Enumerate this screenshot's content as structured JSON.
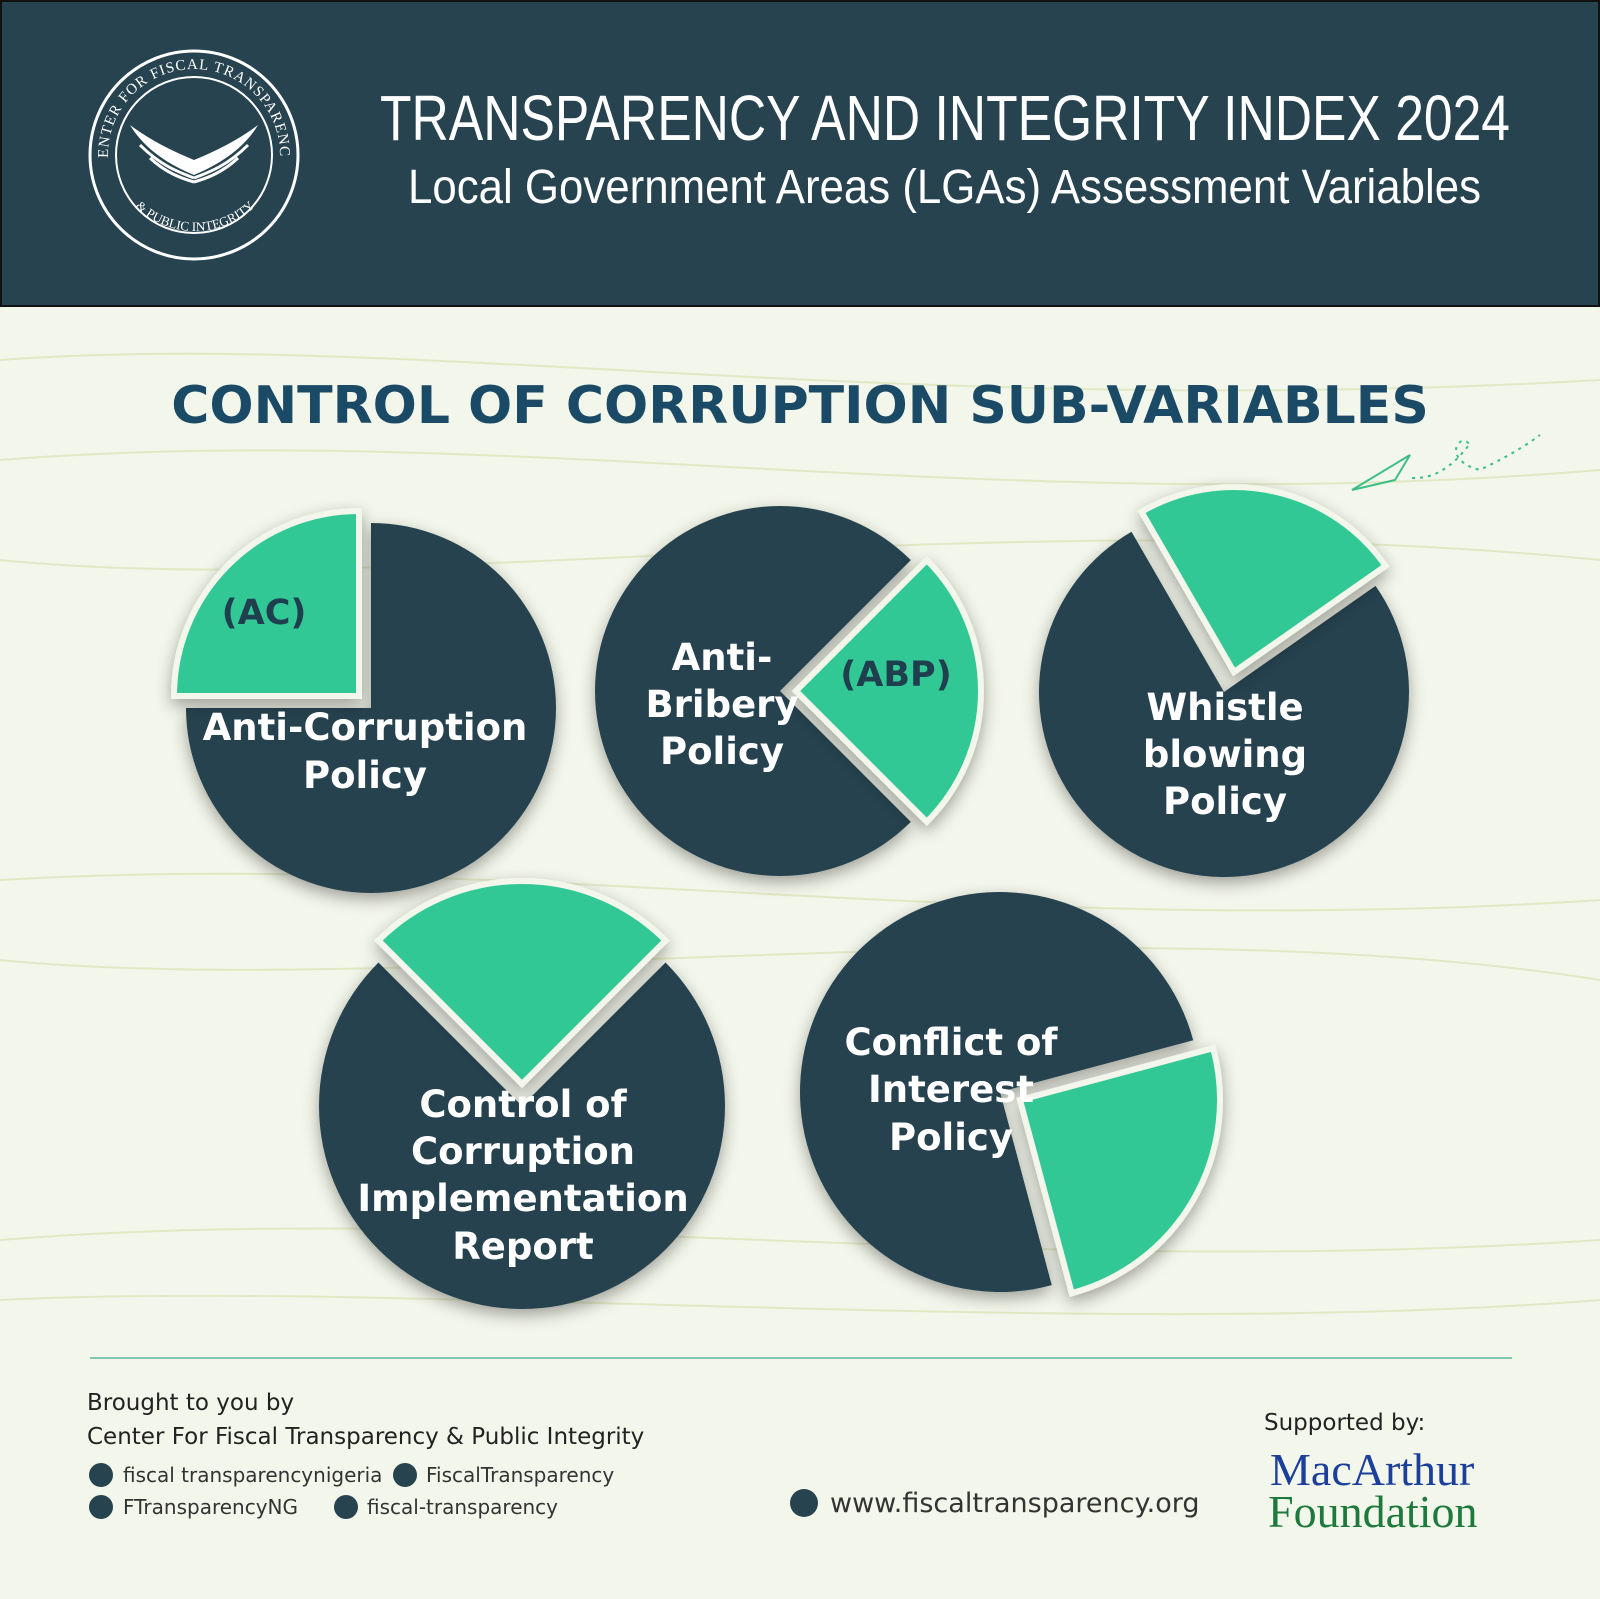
{
  "header": {
    "logo_top": "CENTER FOR FISCAL TRANSPARENCY",
    "logo_bottom": "& PUBLIC INTEGRITY",
    "title": "TRANSPARENCY AND INTEGRITY INDEX 2024",
    "subtitle": "Local Government Areas (LGAs) Assessment Variables"
  },
  "section_title": "CONTROL OF CORRUPTION SUB-VARIABLES",
  "circles": [
    {
      "label_lines": [
        "Anti-Corruption",
        "Policy"
      ],
      "tag": "(AC)"
    },
    {
      "label_lines": [
        "Anti-",
        "Bribery",
        "Policy"
      ],
      "tag": "(ABP)"
    },
    {
      "label_lines": [
        "Whistle",
        "blowing",
        "Policy"
      ]
    },
    {
      "label_lines": [
        "Control of",
        "Corruption",
        "Implementation",
        "Report"
      ]
    },
    {
      "label_lines": [
        "Conflict of",
        "Interest",
        "Policy"
      ]
    }
  ],
  "footer": {
    "brought_by": "Brought to you by",
    "organization": "Center For Fiscal Transparency & Public Integrity",
    "instagram": "fiscal transparencynigeria",
    "facebook": "FiscalTransparency",
    "x": "FTransparencyNG",
    "linkedin": "fiscal-transparency",
    "website": "www.fiscaltransparency.org",
    "supported_by": "Supported by:",
    "sponsor_line1": "MacArthur",
    "sponsor_line2": "Foundation"
  }
}
